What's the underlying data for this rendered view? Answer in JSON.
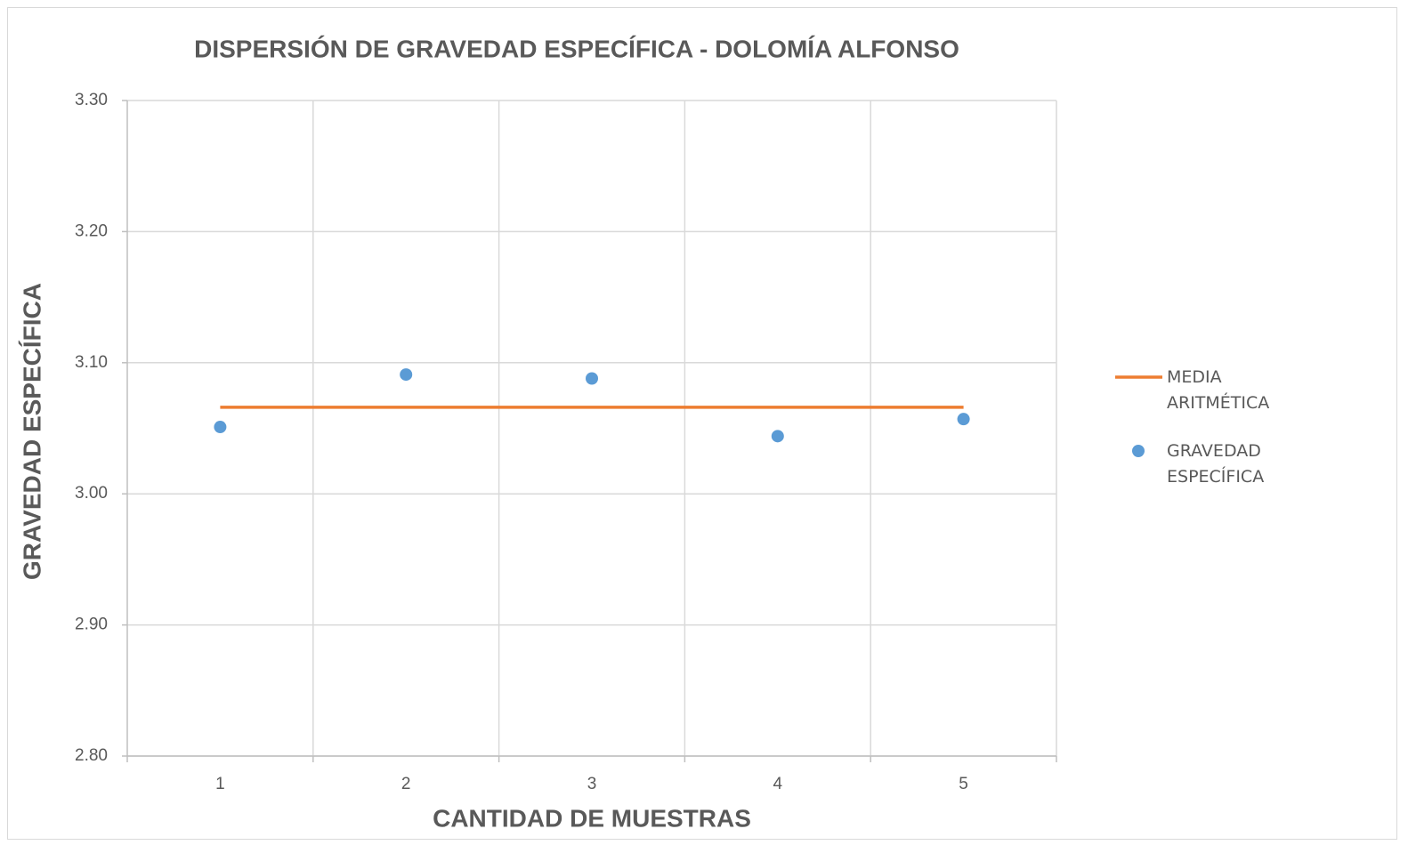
{
  "chart_data": {
    "type": "scatter",
    "title": "DISPERSIÓN DE GRAVEDAD ESPECÍFICA - DOLOMÍA ALFONSO",
    "xlabel": "CANTIDAD DE MUESTRAS",
    "ylabel": "GRAVEDAD ESPECÍFICA",
    "categories": [
      "1",
      "2",
      "3",
      "4",
      "5"
    ],
    "series": [
      {
        "name": "MEDIA ARITMÉTICA",
        "type": "line",
        "color": "#ed7d31",
        "values": [
          3.066,
          3.066,
          3.066,
          3.066,
          3.066
        ]
      },
      {
        "name": "GRAVEDAD ESPECÍFICA",
        "type": "scatter",
        "color": "#5b9bd5",
        "values": [
          3.051,
          3.091,
          3.088,
          3.044,
          3.057
        ]
      }
    ],
    "ylim": [
      2.8,
      3.3
    ],
    "yticks": [
      {
        "value": 2.8,
        "label": "2.80"
      },
      {
        "value": 2.9,
        "label": "2.90"
      },
      {
        "value": 3.0,
        "label": "3.00"
      },
      {
        "value": 3.1,
        "label": "3.10"
      },
      {
        "value": 3.2,
        "label": "3.20"
      },
      {
        "value": 3.3,
        "label": "3.30"
      }
    ],
    "grid": true,
    "legend": "right"
  }
}
